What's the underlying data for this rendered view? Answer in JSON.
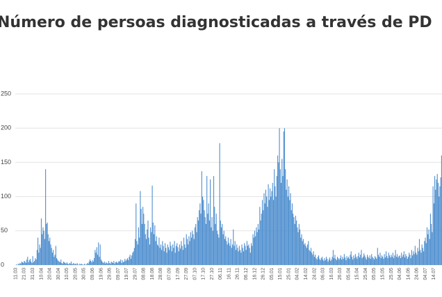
{
  "chart_data": {
    "type": "bar",
    "title": "Número de persoas diagnosticadas a través de PD",
    "color": "#4f8fcf",
    "grid": true,
    "ylim": [
      0,
      250
    ],
    "yticks": [
      0,
      50,
      100,
      150,
      200,
      250
    ],
    "categories": [
      "11.03",
      null,
      null,
      null,
      null,
      null,
      null,
      null,
      null,
      null,
      "21.03",
      null,
      null,
      null,
      null,
      null,
      null,
      null,
      null,
      null,
      "31.03",
      null,
      null,
      null,
      null,
      null,
      null,
      null,
      null,
      null,
      "10.04",
      null,
      null,
      null,
      null,
      null,
      null,
      null,
      null,
      null,
      "20.04",
      null,
      null,
      null,
      null,
      null,
      null,
      null,
      null,
      null,
      "30.04",
      null,
      null,
      null,
      null,
      null,
      null,
      null,
      null,
      null,
      "10.05",
      null,
      null,
      null,
      null,
      null,
      null,
      null,
      null,
      null,
      "20.05",
      null,
      null,
      null,
      null,
      null,
      null,
      null,
      null,
      null,
      "30.05",
      null,
      null,
      null,
      null,
      null,
      null,
      null,
      null,
      null,
      "09.06",
      null,
      null,
      null,
      null,
      null,
      null,
      null,
      null,
      null,
      "19.06",
      null,
      null,
      null,
      null,
      null,
      null,
      null,
      null,
      null,
      "29.06",
      null,
      null,
      null,
      null,
      null,
      null,
      null,
      null,
      null,
      "09.07",
      null,
      null,
      null,
      null,
      null,
      null,
      null,
      null,
      null,
      "19.07",
      null,
      null,
      null,
      null,
      null,
      null,
      null,
      null,
      null,
      "29.07",
      null,
      null,
      null,
      null,
      null,
      null,
      null,
      null,
      null,
      "08.08",
      null,
      null,
      null,
      null,
      null,
      null,
      null,
      null,
      null,
      "18.08",
      null,
      null,
      null,
      null,
      null,
      null,
      null,
      null,
      null,
      "28.08",
      null,
      null,
      null,
      null,
      null,
      null,
      null,
      null,
      null,
      "07.09",
      null,
      null,
      null,
      null,
      null,
      null,
      null,
      null,
      null,
      "17.09",
      null,
      null,
      null,
      null,
      null,
      null,
      null,
      null,
      null,
      "27.09",
      null,
      null,
      null,
      null,
      null,
      null,
      null,
      null,
      null,
      "07.10",
      null,
      null,
      null,
      null,
      null,
      null,
      null,
      null,
      null,
      "17.10",
      null,
      null,
      null,
      null,
      null,
      null,
      null,
      null,
      null,
      "27.10",
      null,
      null,
      null,
      null,
      null,
      null,
      null,
      null,
      null,
      "06.11",
      null,
      null,
      null,
      null,
      null,
      null,
      null,
      null,
      null,
      "16.11",
      null,
      null,
      null,
      null,
      null,
      null,
      null,
      null,
      null,
      "26.11",
      null,
      null,
      null,
      null,
      null,
      null,
      null,
      null,
      null,
      "06.12",
      null,
      null,
      null,
      null,
      null,
      null,
      null,
      null,
      null,
      "16.12",
      null,
      null,
      null,
      null,
      null,
      null,
      null,
      null,
      null,
      "26.12",
      null,
      null,
      null,
      null,
      null,
      null,
      null,
      null,
      null,
      "05.01",
      null,
      null,
      null,
      null,
      null,
      null,
      null,
      null,
      null,
      "15.01",
      null,
      null,
      null,
      null,
      null,
      null,
      null,
      null,
      null,
      "25.01",
      null,
      null,
      null,
      null,
      null,
      null,
      null,
      null,
      null,
      "04.02",
      null,
      null,
      null,
      null,
      null,
      null,
      null,
      null,
      null,
      "14.02",
      null,
      null,
      null,
      null,
      null,
      null,
      null,
      null,
      null,
      "24.02",
      null,
      null,
      null,
      null,
      null,
      null,
      null,
      null,
      null,
      "06.03",
      null,
      null,
      null,
      null,
      null,
      null,
      null,
      null,
      null,
      "16.03",
      null,
      null,
      null,
      null,
      null,
      null,
      null,
      null,
      null,
      "26.03",
      null,
      null,
      null,
      null,
      null,
      null,
      null,
      null,
      null,
      "05.04",
      null,
      null,
      null,
      null,
      null,
      null,
      null,
      null,
      null,
      "15.04",
      null,
      null,
      null,
      null,
      null,
      null,
      null,
      null,
      null,
      "25.04",
      null,
      null,
      null,
      null,
      null,
      null,
      null,
      null,
      null,
      "05.05",
      null,
      null,
      null,
      null,
      null,
      null,
      null,
      null,
      null,
      "15.05",
      null,
      null,
      null,
      null,
      null,
      null,
      null,
      null,
      null,
      "25.05",
      null,
      null,
      null,
      null,
      null,
      null,
      null,
      null,
      null,
      "04.06",
      null,
      null,
      null,
      null,
      null,
      null,
      null,
      null,
      null,
      "14.06",
      null,
      null,
      null,
      null,
      null,
      null,
      null,
      null,
      null,
      "24.06",
      null,
      null,
      null,
      null,
      null,
      null,
      null,
      null,
      null,
      "04.07",
      null,
      null,
      null,
      null,
      null,
      null,
      null,
      null,
      null,
      "14.07",
      null,
      null,
      null,
      null,
      null,
      null,
      null,
      null,
      null
    ],
    "values": [
      0,
      1,
      0,
      2,
      1,
      3,
      2,
      5,
      4,
      3,
      6,
      5,
      3,
      8,
      12,
      4,
      7,
      9,
      5,
      3,
      13,
      4,
      6,
      10,
      8,
      22,
      40,
      18,
      30,
      25,
      68,
      45,
      55,
      50,
      38,
      140,
      60,
      62,
      45,
      35,
      40,
      30,
      25,
      18,
      22,
      12,
      15,
      28,
      10,
      8,
      6,
      5,
      4,
      8,
      3,
      2,
      5,
      4,
      3,
      2,
      4,
      2,
      1,
      3,
      2,
      5,
      1,
      2,
      3,
      1,
      2,
      1,
      3,
      1,
      0,
      2,
      1,
      2,
      1,
      0,
      1,
      2,
      0,
      1,
      3,
      2,
      5,
      8,
      6,
      4,
      7,
      5,
      10,
      22,
      18,
      26,
      15,
      33,
      12,
      30,
      8,
      6,
      4,
      3,
      5,
      2,
      4,
      3,
      2,
      6,
      3,
      2,
      5,
      4,
      3,
      6,
      2,
      4,
      5,
      3,
      4,
      6,
      5,
      8,
      3,
      7,
      4,
      5,
      9,
      6,
      8,
      10,
      7,
      12,
      15,
      9,
      14,
      18,
      20,
      25,
      38,
      90,
      35,
      30,
      55,
      40,
      108,
      82,
      60,
      85,
      75,
      60,
      45,
      38,
      52,
      65,
      40,
      30,
      55,
      48,
      116,
      62,
      45,
      58,
      35,
      42,
      30,
      28,
      40,
      25,
      30,
      22,
      35,
      28,
      20,
      32,
      25,
      18,
      30,
      26,
      22,
      34,
      28,
      20,
      30,
      25,
      35,
      18,
      28,
      32,
      26,
      20,
      30,
      24,
      35,
      28,
      22,
      40,
      30,
      25,
      45,
      38,
      30,
      42,
      35,
      48,
      40,
      50,
      45,
      38,
      55,
      60,
      48,
      70,
      65,
      80,
      90,
      75,
      137,
      100,
      95,
      80,
      70,
      60,
      130,
      75,
      90,
      65,
      125,
      55,
      70,
      50,
      130,
      85,
      60,
      75,
      50,
      45,
      40,
      178,
      65,
      55,
      60,
      45,
      50,
      38,
      42,
      35,
      30,
      40,
      32,
      28,
      38,
      25,
      30,
      52,
      28,
      35,
      22,
      30,
      25,
      20,
      28,
      22,
      18,
      30,
      25,
      20,
      32,
      28,
      22,
      35,
      28,
      30,
      25,
      18,
      32,
      28,
      45,
      40,
      50,
      42,
      55,
      48,
      60,
      52,
      85,
      65,
      75,
      95,
      80,
      105,
      90,
      110,
      100,
      85,
      118,
      95,
      112,
      100,
      108,
      120,
      95,
      140,
      115,
      100,
      130,
      160,
      150,
      200,
      140,
      120,
      155,
      130,
      195,
      200,
      140,
      110,
      125,
      100,
      115,
      95,
      105,
      80,
      90,
      75,
      70,
      60,
      72,
      65,
      55,
      48,
      60,
      52,
      40,
      45,
      35,
      38,
      30,
      32,
      28,
      25,
      30,
      35,
      22,
      20,
      25,
      18,
      15,
      20,
      12,
      15,
      10,
      8,
      12,
      14,
      9,
      7,
      10,
      12,
      8,
      6,
      10,
      7,
      12,
      9,
      5,
      8,
      11,
      6,
      8,
      12,
      22,
      10,
      15,
      9,
      7,
      12,
      10,
      8,
      10,
      14,
      8,
      12,
      9,
      16,
      11,
      7,
      13,
      10,
      12,
      9,
      15,
      20,
      12,
      8,
      14,
      10,
      16,
      12,
      9,
      13,
      18,
      11,
      15,
      22,
      10,
      12,
      17,
      14,
      11,
      8,
      15,
      12,
      10,
      14,
      9,
      16,
      12,
      10,
      8,
      13,
      11,
      9,
      25,
      15,
      12,
      18,
      10,
      14,
      12,
      9,
      16,
      11,
      20,
      13,
      10,
      18,
      14,
      11,
      15,
      12,
      18,
      10,
      14,
      22,
      12,
      16,
      11,
      13,
      14,
      10,
      18,
      12,
      15,
      20,
      11,
      16,
      13,
      9,
      12,
      18,
      15,
      10,
      22,
      14,
      20,
      16,
      28,
      18,
      15,
      25,
      20,
      38,
      22,
      18,
      30,
      25,
      20,
      35,
      40,
      32,
      55,
      45,
      52,
      38,
      75,
      60,
      48,
      115,
      90,
      130,
      110,
      125,
      133,
      120,
      100,
      115,
      128,
      160
    ]
  }
}
